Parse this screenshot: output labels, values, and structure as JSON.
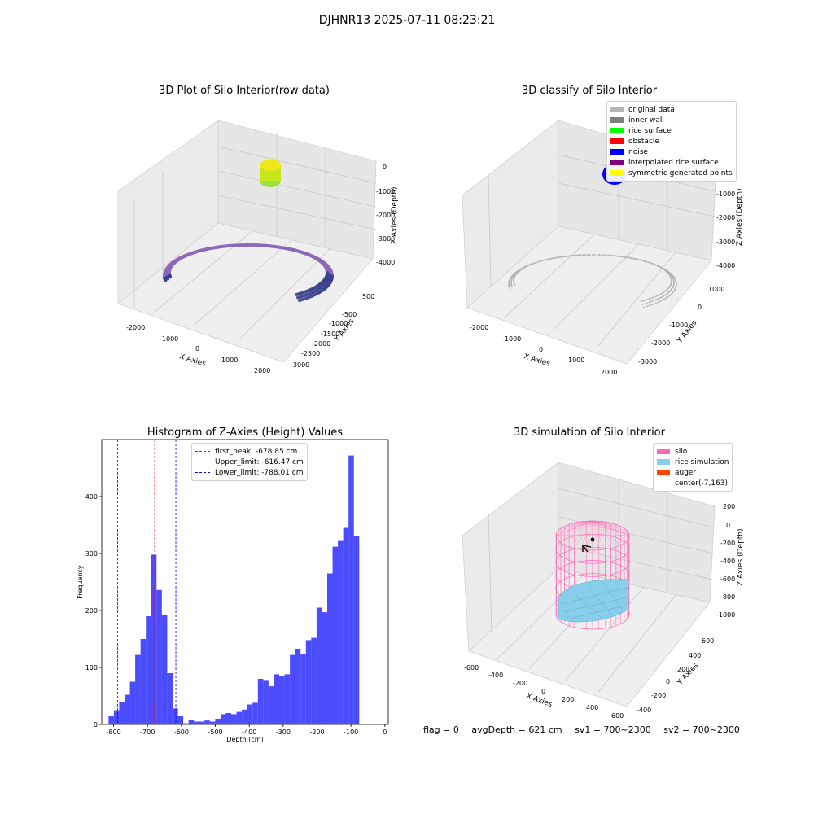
{
  "figure": {
    "suptitle": "DJHNR13 2025-07-11 08:23:21"
  },
  "panel_raw": {
    "title": "3D Plot of Silo Interior(row data)",
    "xlabel": "X Axies",
    "ylabel": "Y Axies",
    "zlabel": "Z Axies (Depth)",
    "xticks": [
      "-2000",
      "-1000",
      "0",
      "1000",
      "2000"
    ],
    "yticks": [
      "500",
      "-500",
      "-1000",
      "-1500",
      "-2000",
      "-2500",
      "-3000"
    ],
    "zticks": [
      "0",
      "-1000",
      "-2000",
      "-3000",
      "-4000"
    ]
  },
  "panel_classify": {
    "title": "3D classify of Silo Interior",
    "xlabel": "X Axies",
    "ylabel": "Y Axies",
    "zlabel": "Z Axies (Depth)",
    "xticks": [
      "-2000",
      "-1000",
      "0",
      "1000",
      "2000"
    ],
    "yticks": [
      "1000",
      "0",
      "-1000",
      "-2000",
      "-3000"
    ],
    "zticks": [
      "0",
      "-1000",
      "-2000",
      "-3000",
      "-4000"
    ],
    "legend": [
      {
        "label": "original data",
        "color": "#b4b4b4"
      },
      {
        "label": "inner wall",
        "color": "#808080"
      },
      {
        "label": "rice surface",
        "color": "#00ff00"
      },
      {
        "label": "obstacle",
        "color": "#ff0000"
      },
      {
        "label": "noise",
        "color": "#0000ff"
      },
      {
        "label": "interpolated rice surface",
        "color": "#800080"
      },
      {
        "label": "symmetric generated points",
        "color": "#ffff00"
      }
    ]
  },
  "panel_sim": {
    "title": "3D simulation of Silo Interior",
    "xlabel": "X Axies",
    "ylabel": "Y Axies",
    "zlabel": "Z Axies (Depth)",
    "xticks": [
      "-600",
      "-400",
      "-200",
      "0",
      "200",
      "400",
      "600"
    ],
    "yticks": [
      "600",
      "400",
      "200",
      "0",
      "-200",
      "-400"
    ],
    "zticks": [
      "200",
      "0",
      "-200",
      "-400",
      "-600",
      "-800",
      "-1000"
    ],
    "legend": [
      {
        "label": "silo",
        "color": "#ff69b4"
      },
      {
        "label": "rice simulation",
        "color": "#87ceeb"
      },
      {
        "label": "auger",
        "color": "#ff4500"
      },
      {
        "label": "center(-7,163)",
        "color": "none"
      }
    ]
  },
  "chart_data": [
    {
      "type": "histogram",
      "title": "Histogram of Z-Axies (Height) Values",
      "xlabel": "Depth (cm)",
      "ylabel": "Frequency",
      "xlim": [
        -835,
        10
      ],
      "ylim": [
        0,
        500
      ],
      "xticks": [
        -800,
        -700,
        -600,
        -500,
        -400,
        -300,
        -200,
        -100,
        0
      ],
      "yticks": [
        0,
        100,
        200,
        300,
        400
      ],
      "bar_color": "#0000ff",
      "bin_start": -815,
      "bin_width": 15.73,
      "counts": [
        15,
        25,
        40,
        52,
        75,
        122,
        150,
        190,
        298,
        236,
        192,
        90,
        28,
        15,
        2,
        8,
        5,
        5,
        7,
        5,
        10,
        18,
        20,
        18,
        22,
        26,
        35,
        38,
        80,
        78,
        67,
        88,
        85,
        88,
        122,
        133,
        123,
        148,
        152,
        205,
        197,
        265,
        312,
        322,
        345,
        472,
        330
      ],
      "vlines": [
        {
          "label": "first_peak: -678.85 cm",
          "x": -678.85,
          "color": "#ff0000"
        },
        {
          "label": "Upper_limit: -616.47 cm",
          "x": -616.47,
          "color": "#0000ff"
        },
        {
          "label": "Lower_limit: -788.01 cm",
          "x": -788.01,
          "color": "#0000ff"
        }
      ]
    }
  ],
  "footer": {
    "flag": "flag = 0",
    "avg_depth": "avgDepth = 621 cm",
    "sv1": "sv1 = 700~2300",
    "sv2": "sv2 = 700~2300"
  }
}
